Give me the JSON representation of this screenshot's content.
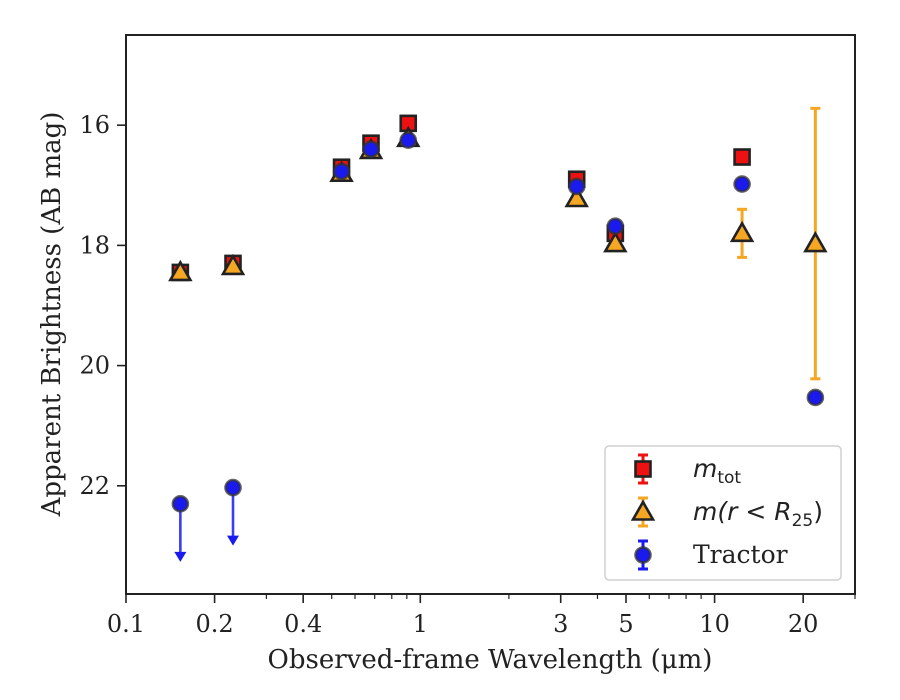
{
  "chart_data": {
    "type": "scatter",
    "title": "",
    "xlabel": "Observed-frame Wavelength (μm)",
    "ylabel": "Apparent Brightness (AB mag)",
    "xscale": "log",
    "xlim": [
      0.1,
      30
    ],
    "ylim": [
      23.8,
      14.5
    ],
    "y_inverted": true,
    "x_ticks": [
      {
        "value": 0.1,
        "label": "0.1"
      },
      {
        "value": 0.2,
        "label": "0.2"
      },
      {
        "value": 0.4,
        "label": "0.4"
      },
      {
        "value": 1,
        "label": "1"
      },
      {
        "value": 3,
        "label": "3"
      },
      {
        "value": 5,
        "label": "5"
      },
      {
        "value": 10,
        "label": "10"
      },
      {
        "value": 20,
        "label": "20"
      }
    ],
    "y_ticks": [
      {
        "value": 16,
        "label": "16"
      },
      {
        "value": 18,
        "label": "18"
      },
      {
        "value": 20,
        "label": "20"
      },
      {
        "value": 22,
        "label": "22"
      }
    ],
    "grid": false,
    "legend_position": "lower-right",
    "series": [
      {
        "name": "m_tot",
        "marker": "square",
        "color": "#ee1111",
        "edge_color": "#222222",
        "points": [
          {
            "x": 0.153,
            "y": 18.45,
            "err": 0.05
          },
          {
            "x": 0.231,
            "y": 18.3,
            "err": 0.05
          },
          {
            "x": 0.54,
            "y": 16.7,
            "err": 0.05
          },
          {
            "x": 0.68,
            "y": 16.3,
            "err": 0.05
          },
          {
            "x": 0.91,
            "y": 15.97,
            "err": 0.05
          },
          {
            "x": 3.4,
            "y": 16.9,
            "err": 0.05
          },
          {
            "x": 4.6,
            "y": 17.8,
            "err": 0.05
          },
          {
            "x": 12.4,
            "y": 16.53,
            "err": 0.05
          }
        ]
      },
      {
        "name": "m(r < R25)",
        "marker": "triangle",
        "color": "#f5a623",
        "edge_color": "#222222",
        "points": [
          {
            "x": 0.153,
            "y": 18.45,
            "err": 0.03
          },
          {
            "x": 0.231,
            "y": 18.35,
            "err": 0.03
          },
          {
            "x": 0.54,
            "y": 16.8,
            "err": 0.03
          },
          {
            "x": 0.68,
            "y": 16.42,
            "err": 0.03
          },
          {
            "x": 0.91,
            "y": 16.22,
            "err": 0.03
          },
          {
            "x": 3.4,
            "y": 17.22,
            "err": 0.05
          },
          {
            "x": 4.6,
            "y": 17.97,
            "err": 0.05
          },
          {
            "x": 12.4,
            "y": 17.8,
            "err": 0.4
          },
          {
            "x": 22,
            "y": 17.97,
            "err": 2.25
          }
        ]
      },
      {
        "name": "Tractor",
        "marker": "circle",
        "color": "#1a1aee",
        "edge_color": "#333333",
        "points": [
          {
            "x": 0.153,
            "y": 22.3,
            "upper_limit": true
          },
          {
            "x": 0.231,
            "y": 22.03,
            "upper_limit": true
          },
          {
            "x": 0.54,
            "y": 16.77,
            "err": 0.05
          },
          {
            "x": 0.68,
            "y": 16.4,
            "err": 0.05
          },
          {
            "x": 0.91,
            "y": 16.25,
            "err": 0.05
          },
          {
            "x": 3.4,
            "y": 17.02,
            "err": 0.05
          },
          {
            "x": 4.6,
            "y": 17.68,
            "err": 0.05
          },
          {
            "x": 12.4,
            "y": 16.98,
            "err": 0.07
          },
          {
            "x": 22,
            "y": 20.53,
            "err": 0.08
          }
        ]
      }
    ],
    "legend": [
      {
        "label_main": "m",
        "label_sub": "tot",
        "label_rest": ""
      },
      {
        "label_main": "m(r < R",
        "label_sub": "25",
        "label_rest": ")"
      },
      {
        "label_main": "Tractor",
        "label_sub": "",
        "label_rest": ""
      }
    ]
  }
}
